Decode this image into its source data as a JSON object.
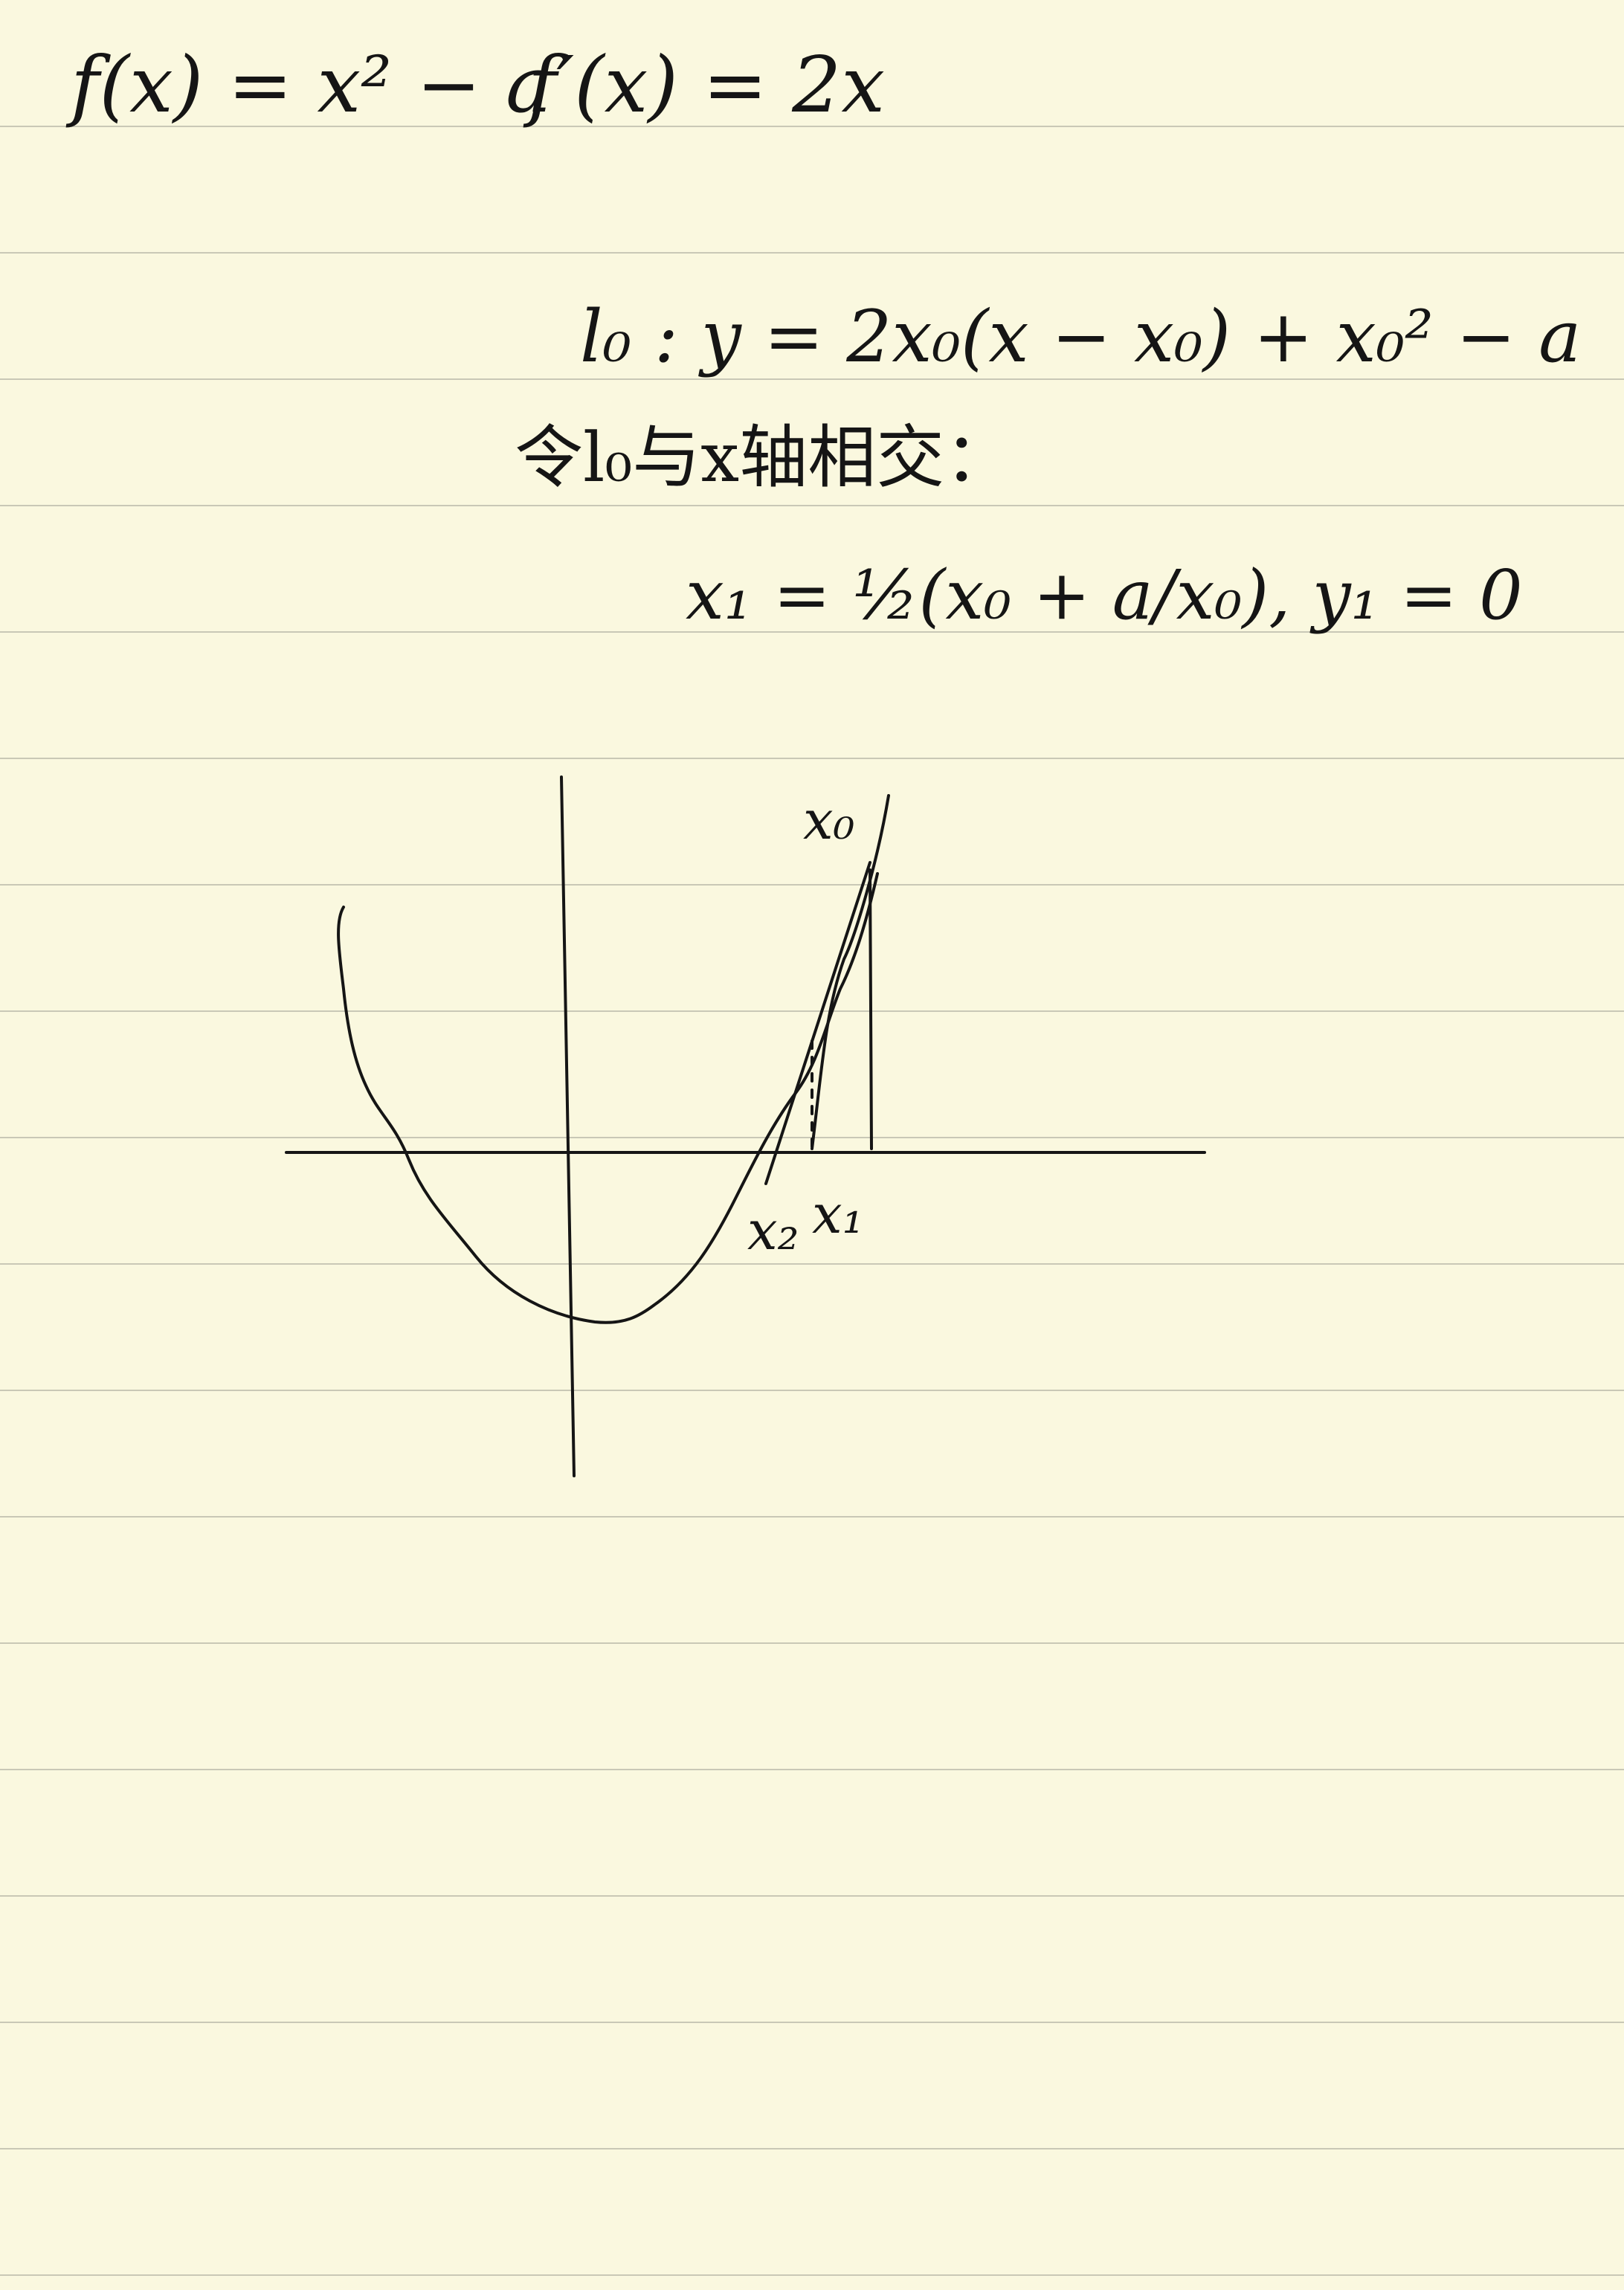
{
  "notes": {
    "function_def": "f(x) = x² − a",
    "derivative_def": "f′(x) = 2x",
    "tangent_line": "l₀ : y = 2x₀(x − x₀) + x₀² − a",
    "intersection_text": "令l₀与x轴相交：",
    "intercept_result": "x₁ = ½(x₀ + a/x₀), y₁ = 0"
  },
  "graph": {
    "label_x0": "x₀",
    "label_x1": "x₁",
    "label_x2": "x₂"
  },
  "colors": {
    "paper": "#faf8df",
    "rule_line": "#c9c8b6",
    "ink": "#151515"
  }
}
